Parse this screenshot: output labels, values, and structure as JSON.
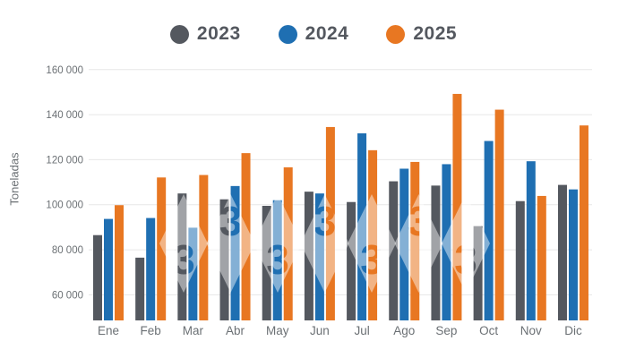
{
  "chart_data": {
    "type": "bar",
    "title": "",
    "categories": [
      "Ene",
      "Feb",
      "Mar",
      "Abr",
      "May",
      "Jun",
      "Jul",
      "Ago",
      "Sep",
      "Oct",
      "Nov",
      "Dic"
    ],
    "series": [
      {
        "name": "2023",
        "color": "#54585F",
        "values": [
          86500,
          76500,
          105000,
          102400,
          99500,
          105800,
          101200,
          110400,
          108500,
          90500,
          101600,
          108800
        ]
      },
      {
        "name": "2024",
        "color": "#1F6FB2",
        "values": [
          93700,
          94100,
          89800,
          108300,
          102000,
          105000,
          131700,
          116000,
          118000,
          128300,
          119300,
          106800
        ]
      },
      {
        "name": "2025",
        "color": "#E87722",
        "values": [
          99800,
          112100,
          113200,
          122900,
          116600,
          134500,
          124200,
          119000,
          149200,
          142200,
          103900,
          135200
        ]
      }
    ],
    "xlabel": "",
    "ylabel": "Toneladas",
    "yticks": [
      60000,
      80000,
      100000,
      120000,
      140000,
      160000
    ],
    "ytick_labels": [
      "60 000",
      "80 000",
      "100 000",
      "120 000",
      "140 000",
      "160 000"
    ],
    "ylim": [
      48600,
      163000
    ],
    "grid": true,
    "legend_position": "top",
    "watermark_glyph": "3"
  },
  "colors": {
    "grid": "#E7E7E7",
    "axis_text": "#6B7074",
    "legend_text": "#54585F",
    "background": "#FFFFFF",
    "watermark_fill": "#FFFFFF"
  }
}
